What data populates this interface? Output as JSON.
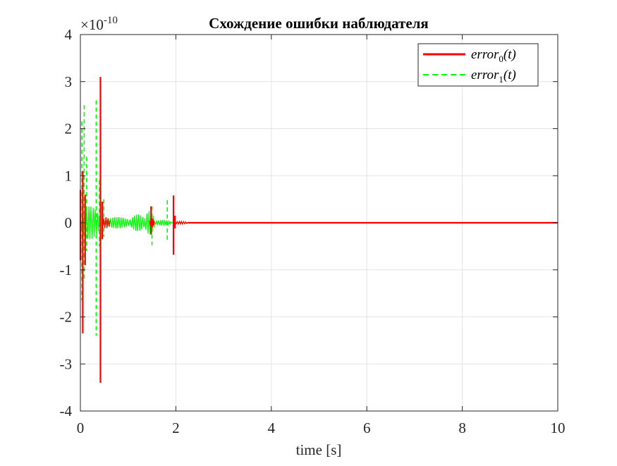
{
  "chart_data": {
    "type": "line",
    "title": "Схождение ошибки наблюдателя",
    "xlabel": "time [s]",
    "ylabel": "",
    "xlim": [
      0,
      10
    ],
    "ylim": [
      -4,
      4
    ],
    "y_scale_factor": "×10",
    "y_scale_exponent": "-10",
    "x_ticks": [
      "0",
      "2",
      "4",
      "6",
      "8",
      "10"
    ],
    "y_ticks": [
      "4",
      "3",
      "2",
      "1",
      "0",
      "-1",
      "-2",
      "-3",
      "-4"
    ],
    "grid": true,
    "legend_position": "top-right",
    "series": [
      {
        "name_base": "error",
        "name_sub": "0",
        "name_arg": "(t)",
        "color": "#ff0000",
        "style": "solid",
        "spikes": [
          {
            "x": 0.0,
            "top": 0.7,
            "bottom": -0.8
          },
          {
            "x": 0.05,
            "top": 1.1,
            "bottom": -2.35
          },
          {
            "x": 0.1,
            "top": 0.6,
            "bottom": -0.9
          },
          {
            "x": 0.42,
            "top": 3.1,
            "bottom": -3.4
          },
          {
            "x": 0.46,
            "top": 0.45,
            "bottom": -0.35
          },
          {
            "x": 1.48,
            "top": 0.35,
            "bottom": -0.25
          },
          {
            "x": 1.95,
            "top": 0.58,
            "bottom": -0.68
          },
          {
            "x": 1.98,
            "top": 0.15,
            "bottom": -0.12
          }
        ],
        "bands": [
          {
            "x0": 0.45,
            "x1": 0.62,
            "amp": 0.12
          },
          {
            "x0": 1.45,
            "x1": 1.55,
            "amp": 0.1
          },
          {
            "x0": 1.94,
            "x1": 2.25,
            "amp": 0.03
          }
        ],
        "steady_value": 0
      },
      {
        "name_base": "error",
        "name_sub": "1",
        "name_arg": "(t)",
        "color": "#00ff00",
        "style": "dashed",
        "spikes": [
          {
            "x": 0.03,
            "top": 2.15,
            "bottom": -1.65
          },
          {
            "x": 0.08,
            "top": 2.5,
            "bottom": -1.2
          },
          {
            "x": 0.13,
            "top": 1.4,
            "bottom": -0.6
          },
          {
            "x": 0.33,
            "top": 2.6,
            "bottom": -2.4
          },
          {
            "x": 0.4,
            "top": 0.9,
            "bottom": -0.5
          },
          {
            "x": 0.49,
            "top": 0.5,
            "bottom": -0.3
          },
          {
            "x": 1.5,
            "top": 0.35,
            "bottom": -0.48
          },
          {
            "x": 1.82,
            "top": 0.48,
            "bottom": -0.42
          }
        ],
        "bands": [
          {
            "x0": 0.0,
            "x1": 0.4,
            "amp": 0.35
          },
          {
            "x0": 0.5,
            "x1": 1.05,
            "amp": 0.12
          },
          {
            "x0": 1.05,
            "x1": 1.35,
            "amp": 0.18
          },
          {
            "x0": 1.35,
            "x1": 1.55,
            "amp": 0.25
          },
          {
            "x0": 1.55,
            "x1": 1.9,
            "amp": 0.06
          }
        ],
        "steady_value": 0
      }
    ]
  }
}
